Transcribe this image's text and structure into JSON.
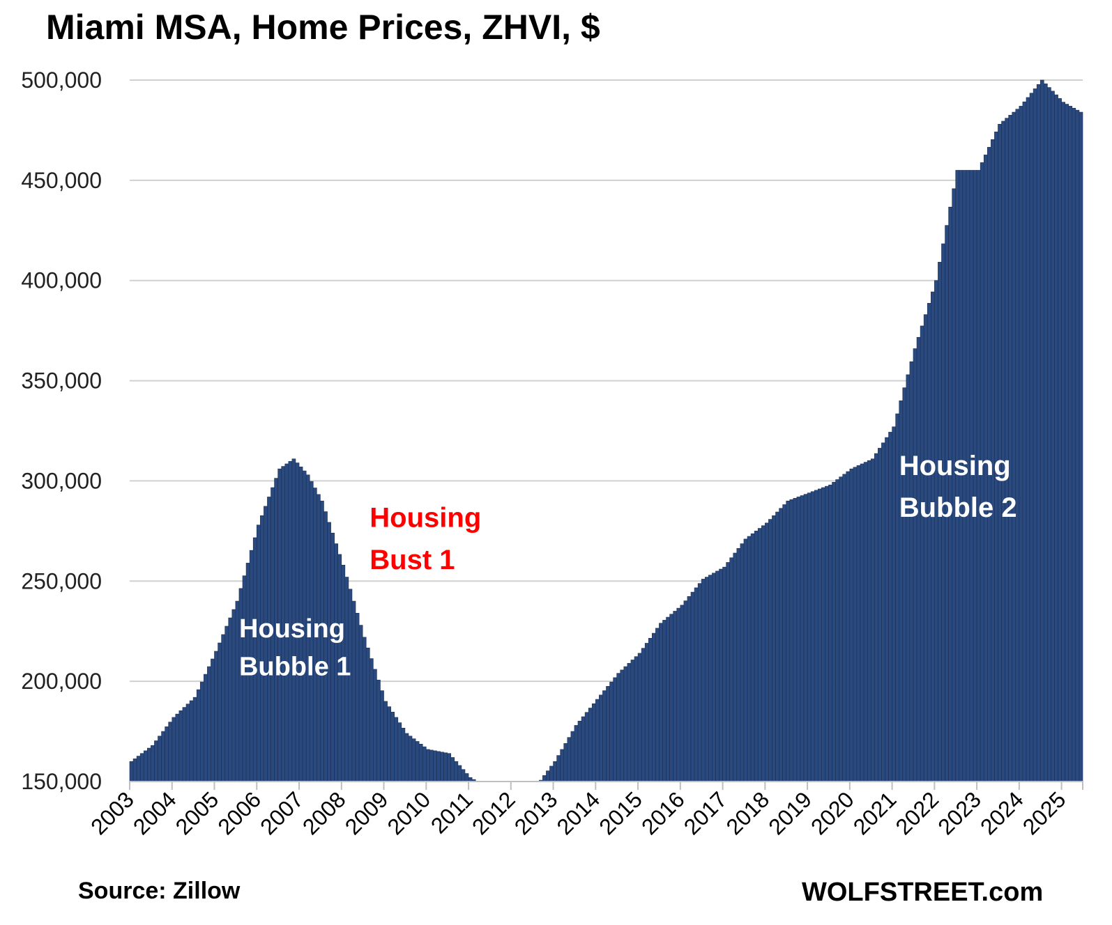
{
  "chart_data": {
    "type": "bar",
    "title": "Miami MSA, Home Prices, ZHVI, $",
    "xlabel": "",
    "ylabel": "",
    "ylim": [
      150000,
      500000
    ],
    "x_range": [
      "2003-01",
      "2025-06"
    ],
    "grid": true,
    "legend": "none",
    "bar_color": "#2a4a7f",
    "bar_edge_color": "#1a2e52",
    "y_ticks": [
      150000,
      200000,
      250000,
      300000,
      350000,
      400000,
      450000,
      500000
    ],
    "y_tick_labels": [
      "150,000",
      "200,000",
      "250,000",
      "300,000",
      "350,000",
      "400,000",
      "450,000",
      "500,000"
    ],
    "x_tick_labels": [
      "2003",
      "2004",
      "2005",
      "2006",
      "2007",
      "2008",
      "2009",
      "2010",
      "2011",
      "2012",
      "2013",
      "2014",
      "2015",
      "2016",
      "2017",
      "2018",
      "2019",
      "2020",
      "2021",
      "2022",
      "2023",
      "2024",
      "2025"
    ],
    "keypoints": [
      [
        "2003-01",
        160000
      ],
      [
        "2003-07",
        168000
      ],
      [
        "2004-01",
        182000
      ],
      [
        "2004-07",
        192000
      ],
      [
        "2005-01",
        215000
      ],
      [
        "2005-07",
        240000
      ],
      [
        "2006-01",
        278000
      ],
      [
        "2006-07",
        306000
      ],
      [
        "2006-11",
        311000
      ],
      [
        "2007-03",
        303000
      ],
      [
        "2007-07",
        290000
      ],
      [
        "2008-01",
        258000
      ],
      [
        "2008-07",
        222000
      ],
      [
        "2009-01",
        190000
      ],
      [
        "2009-07",
        174000
      ],
      [
        "2010-01",
        166000
      ],
      [
        "2010-07",
        164000
      ],
      [
        "2011-01",
        152000
      ],
      [
        "2011-07",
        146000
      ],
      [
        "2012-01",
        140000
      ],
      [
        "2012-07",
        146000
      ],
      [
        "2013-01",
        160000
      ],
      [
        "2013-07",
        178000
      ],
      [
        "2014-01",
        191000
      ],
      [
        "2014-07",
        204000
      ],
      [
        "2015-01",
        214000
      ],
      [
        "2015-07",
        229000
      ],
      [
        "2016-01",
        238000
      ],
      [
        "2016-07",
        251000
      ],
      [
        "2017-01",
        257000
      ],
      [
        "2017-07",
        271000
      ],
      [
        "2018-01",
        279000
      ],
      [
        "2018-07",
        290000
      ],
      [
        "2019-01",
        294000
      ],
      [
        "2019-07",
        298000
      ],
      [
        "2020-01",
        306000
      ],
      [
        "2020-07",
        311000
      ],
      [
        "2021-01",
        327000
      ],
      [
        "2021-07",
        366000
      ],
      [
        "2022-01",
        400000
      ],
      [
        "2022-07",
        455000
      ],
      [
        "2023-01",
        455000
      ],
      [
        "2023-07",
        478000
      ],
      [
        "2024-01",
        487000
      ],
      [
        "2024-07",
        500000
      ],
      [
        "2025-01",
        489000
      ],
      [
        "2025-06",
        484000
      ]
    ],
    "annotations": [
      {
        "text": "Housing",
        "color": "#ffffff",
        "size": 38,
        "x": "2005-08",
        "y": 222000
      },
      {
        "text": "Bubble 1",
        "color": "#ffffff",
        "size": 38,
        "x": "2005-08",
        "y": 203000
      },
      {
        "text": "Housing",
        "color": "#ff0000",
        "size": 40,
        "x": "2008-09",
        "y": 277000
      },
      {
        "text": "Bust 1",
        "color": "#ff0000",
        "size": 40,
        "x": "2008-09",
        "y": 256000
      },
      {
        "text": "Housing",
        "color": "#ffffff",
        "size": 40,
        "x": "2021-03",
        "y": 303000
      },
      {
        "text": "Bubble 2",
        "color": "#ffffff",
        "size": 40,
        "x": "2021-03",
        "y": 282000
      }
    ]
  },
  "footer": {
    "source": "Source: Zillow",
    "brand": "WOLFSTREET.com"
  }
}
